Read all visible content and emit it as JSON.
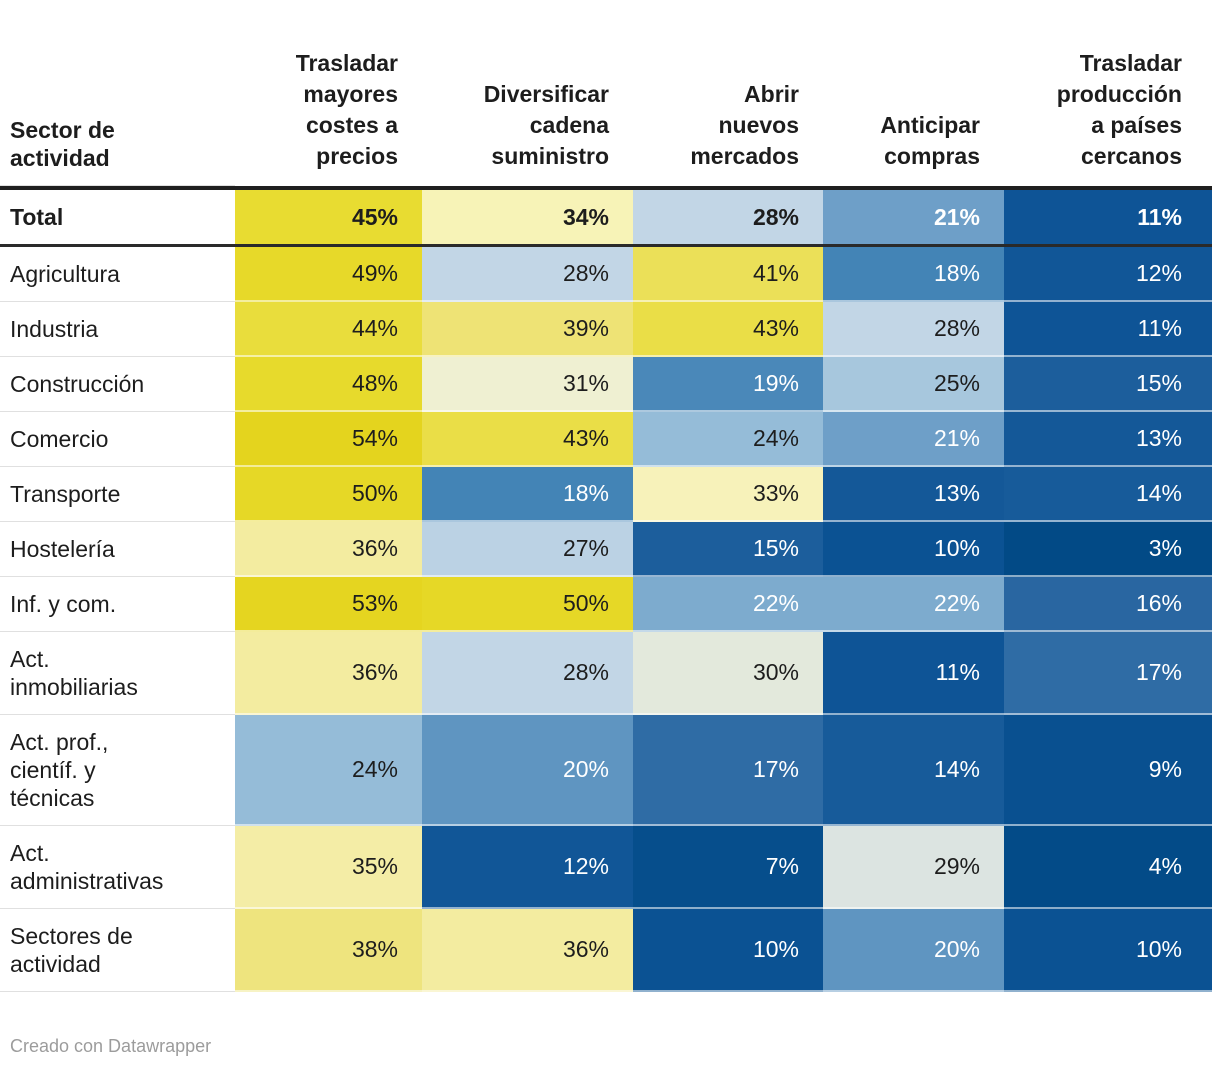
{
  "footer": {
    "credit": "Creado con Datawrapper"
  },
  "colors": {
    "text_dark": "#1d1d1d",
    "text_light": "#ffffff",
    "header_border": "#1f1f1f",
    "row_divider": "#e0e0e0",
    "footer_text": "#9c9c9c"
  },
  "chart_data": {
    "type": "heatmap",
    "unit": "%",
    "row_header": "Sector de\nactividad",
    "columns": [
      "Trasladar\nmayores\ncostes a\nprecios",
      "Diversificar\ncadena\nsuministro",
      "Abrir\nnuevos\nmercados",
      "Anticipar\ncompras",
      "Trasladar\nproducción\na países\ncercanos"
    ],
    "rows": [
      {
        "label": "Total",
        "bold": true,
        "values": [
          45,
          34,
          28,
          21,
          11
        ]
      },
      {
        "label": "Agricultura",
        "values": [
          49,
          28,
          41,
          18,
          12
        ]
      },
      {
        "label": "Industria",
        "values": [
          44,
          39,
          43,
          28,
          11
        ]
      },
      {
        "label": "Construcción",
        "values": [
          48,
          31,
          19,
          25,
          15
        ]
      },
      {
        "label": "Comercio",
        "values": [
          54,
          43,
          24,
          21,
          13
        ]
      },
      {
        "label": "Transporte",
        "values": [
          50,
          18,
          33,
          13,
          14
        ]
      },
      {
        "label": "Hostelería",
        "values": [
          36,
          27,
          15,
          10,
          3
        ]
      },
      {
        "label": "Inf. y com.",
        "values": [
          53,
          50,
          22,
          22,
          16
        ]
      },
      {
        "label": "Act.\ninmobiliarias",
        "values": [
          36,
          28,
          30,
          11,
          17
        ]
      },
      {
        "label": "Act. prof.,\ncientíf. y\ntécnicas",
        "values": [
          24,
          20,
          17,
          14,
          9
        ]
      },
      {
        "label": "Act.\nadministrativas",
        "values": [
          35,
          12,
          7,
          29,
          4
        ]
      },
      {
        "label": "Sectores de\nactividad",
        "values": [
          38,
          36,
          10,
          20,
          10
        ]
      }
    ],
    "dark_text_min": 24,
    "value_colors": {
      "3": "#024a86",
      "4": "#034b88",
      "7": "#064e8c",
      "9": "#095090",
      "10": "#0b5293",
      "11": "#0e5496",
      "12": "#115697",
      "13": "#145898",
      "14": "#175b9a",
      "15": "#1c5e9c",
      "16": "#2966a1",
      "17": "#2f6ca5",
      "18": "#4384b6",
      "19": "#4a88b9",
      "20": "#5f95c1",
      "21": "#6e9fc8",
      "22": "#7dabce",
      "24": "#95bcd8",
      "25": "#a7c7dd",
      "27": "#bbd2e4",
      "28": "#c2d6e6",
      "29": "#dce4e1",
      "30": "#e3e9dc",
      "31": "#eff0d2",
      "33": "#f7f2ba",
      "34": "#f7f3b7",
      "35": "#f4eda6",
      "36": "#f3eca0",
      "38": "#eee47e",
      "39": "#eee375",
      "41": "#ebe058",
      "43": "#eade47",
      "44": "#e9dd3c",
      "45": "#e8dc31",
      "48": "#e7da2c",
      "49": "#e7d929",
      "50": "#e6d826",
      "53": "#e5d520",
      "54": "#e4d41e"
    },
    "legend_position": "none",
    "grid": false
  }
}
